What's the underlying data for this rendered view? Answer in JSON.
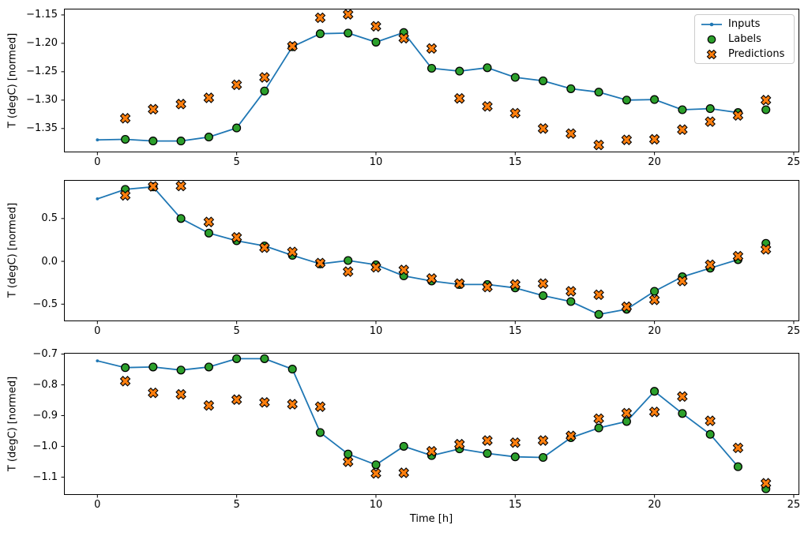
{
  "figure": {
    "background_color": "#ffffff",
    "xlabel": "Time [h]",
    "ylabel": "T (degC) [normed]"
  },
  "legend": {
    "position": "upper-right-first-subplot",
    "items": [
      {
        "label": "Inputs",
        "marker": "line-with-dot",
        "color": "#1f77b4"
      },
      {
        "label": "Labels",
        "marker": "filled-circle",
        "color": "#2ca02c",
        "edge_color": "#000000"
      },
      {
        "label": "Predictions",
        "marker": "thick-x",
        "color": "#ff7f0e",
        "edge_color": "#000000"
      }
    ]
  },
  "chart_data": [
    {
      "type": "line+scatter",
      "ylabel": "T (degC) [normed]",
      "xlabel": "",
      "xlim": [
        -1.2,
        25.2
      ],
      "ylim": [
        -1.392,
        -1.139
      ],
      "xticks": [
        0,
        5,
        10,
        15,
        20,
        25
      ],
      "xtick_labels": [
        "0",
        "5",
        "10",
        "15",
        "20",
        "25"
      ],
      "yticks": [
        -1.15,
        -1.2,
        -1.25,
        -1.3,
        -1.35
      ],
      "ytick_labels": [
        "−1.15",
        "−1.20",
        "−1.25",
        "−1.30",
        "−1.35"
      ],
      "legend": true,
      "series": [
        {
          "name": "Inputs",
          "type": "line",
          "marker": "dot",
          "color": "#1f77b4",
          "x": [
            0,
            1,
            2,
            3,
            4,
            5,
            6,
            7,
            8,
            9,
            10,
            11,
            12,
            13,
            14,
            15,
            16,
            17,
            18,
            19,
            20,
            21,
            22,
            23
          ],
          "y": [
            -1.37,
            -1.369,
            -1.372,
            -1.372,
            -1.365,
            -1.349,
            -1.284,
            -1.206,
            -1.183,
            -1.182,
            -1.198,
            -1.181,
            -1.244,
            -1.249,
            -1.243,
            -1.26,
            -1.266,
            -1.28,
            -1.286,
            -1.3,
            -1.299,
            -1.317,
            -1.315,
            -1.322
          ]
        },
        {
          "name": "Labels",
          "type": "scatter",
          "marker": "circle",
          "color": "#2ca02c",
          "x": [
            1,
            2,
            3,
            4,
            5,
            6,
            7,
            8,
            9,
            10,
            11,
            12,
            13,
            14,
            15,
            16,
            17,
            18,
            19,
            20,
            21,
            22,
            23,
            24
          ],
          "y": [
            -1.369,
            -1.372,
            -1.372,
            -1.365,
            -1.349,
            -1.284,
            -1.206,
            -1.183,
            -1.182,
            -1.198,
            -1.181,
            -1.244,
            -1.249,
            -1.243,
            -1.26,
            -1.266,
            -1.28,
            -1.286,
            -1.3,
            -1.299,
            -1.317,
            -1.315,
            -1.322,
            -1.317
          ]
        },
        {
          "name": "Predictions",
          "type": "scatter",
          "marker": "X",
          "color": "#ff7f0e",
          "x": [
            1,
            2,
            3,
            4,
            5,
            6,
            7,
            8,
            9,
            10,
            11,
            12,
            13,
            14,
            15,
            16,
            17,
            18,
            19,
            20,
            21,
            22,
            23,
            24
          ],
          "y": [
            -1.332,
            -1.316,
            -1.307,
            -1.296,
            -1.273,
            -1.26,
            -1.205,
            -1.155,
            -1.149,
            -1.17,
            -1.191,
            -1.209,
            -1.297,
            -1.311,
            -1.323,
            -1.35,
            -1.359,
            -1.379,
            -1.37,
            -1.369,
            -1.352,
            -1.338,
            -1.327,
            -1.3
          ]
        }
      ]
    },
    {
      "type": "line+scatter",
      "ylabel": "T (degC) [normed]",
      "xlabel": "",
      "xlim": [
        -1.2,
        25.2
      ],
      "ylim": [
        -0.7,
        0.95
      ],
      "xticks": [
        0,
        5,
        10,
        15,
        20,
        25
      ],
      "xtick_labels": [
        "0",
        "5",
        "10",
        "15",
        "20",
        "25"
      ],
      "yticks": [
        0.5,
        0.0,
        -0.5
      ],
      "ytick_labels": [
        "0.5",
        "0.0",
        "−0.5"
      ],
      "legend": false,
      "series": [
        {
          "name": "Inputs",
          "type": "line",
          "marker": "dot",
          "color": "#1f77b4",
          "x": [
            0,
            1,
            2,
            3,
            4,
            5,
            6,
            7,
            8,
            9,
            10,
            11,
            12,
            13,
            14,
            15,
            16,
            17,
            18,
            19,
            20,
            21,
            22,
            23
          ],
          "y": [
            0.73,
            0.84,
            0.87,
            0.5,
            0.33,
            0.24,
            0.18,
            0.07,
            -0.03,
            0.01,
            -0.04,
            -0.17,
            -0.23,
            -0.27,
            -0.27,
            -0.31,
            -0.4,
            -0.47,
            -0.62,
            -0.56,
            -0.35,
            -0.18,
            -0.08,
            0.02
          ]
        },
        {
          "name": "Labels",
          "type": "scatter",
          "marker": "circle",
          "color": "#2ca02c",
          "x": [
            1,
            2,
            3,
            4,
            5,
            6,
            7,
            8,
            9,
            10,
            11,
            12,
            13,
            14,
            15,
            16,
            17,
            18,
            19,
            20,
            21,
            22,
            23,
            24
          ],
          "y": [
            0.84,
            0.87,
            0.5,
            0.33,
            0.24,
            0.18,
            0.07,
            -0.03,
            0.01,
            -0.04,
            -0.17,
            -0.23,
            -0.27,
            -0.27,
            -0.31,
            -0.4,
            -0.47,
            -0.62,
            -0.56,
            -0.35,
            -0.18,
            -0.08,
            0.02,
            0.21
          ]
        },
        {
          "name": "Predictions",
          "type": "scatter",
          "marker": "X",
          "color": "#ff7f0e",
          "x": [
            1,
            2,
            3,
            4,
            5,
            6,
            7,
            8,
            9,
            10,
            11,
            12,
            13,
            14,
            15,
            16,
            17,
            18,
            19,
            20,
            21,
            22,
            23,
            24
          ],
          "y": [
            0.77,
            0.875,
            0.88,
            0.46,
            0.28,
            0.16,
            0.11,
            -0.02,
            -0.12,
            -0.07,
            -0.1,
            -0.2,
            -0.26,
            -0.3,
            -0.27,
            -0.26,
            -0.35,
            -0.39,
            -0.53,
            -0.45,
            -0.23,
            -0.04,
            0.06,
            0.14
          ]
        }
      ]
    },
    {
      "type": "line+scatter",
      "ylabel": "T (degC) [normed]",
      "xlabel": "Time [h]",
      "xlim": [
        -1.2,
        25.2
      ],
      "ylim": [
        -1.158,
        -0.696
      ],
      "xticks": [
        0,
        5,
        10,
        15,
        20,
        25
      ],
      "xtick_labels": [
        "0",
        "5",
        "10",
        "15",
        "20",
        "25"
      ],
      "yticks": [
        -0.7,
        -0.8,
        -0.9,
        -1.0,
        -1.1
      ],
      "ytick_labels": [
        "−0.7",
        "−0.8",
        "−0.9",
        "−1.0",
        "−1.1"
      ],
      "legend": false,
      "series": [
        {
          "name": "Inputs",
          "type": "line",
          "marker": "dot",
          "color": "#1f77b4",
          "x": [
            0,
            1,
            2,
            3,
            4,
            5,
            6,
            7,
            8,
            9,
            10,
            11,
            12,
            13,
            14,
            15,
            16,
            17,
            18,
            19,
            20,
            21,
            22,
            23
          ],
          "y": [
            -0.722,
            -0.744,
            -0.742,
            -0.752,
            -0.742,
            -0.715,
            -0.715,
            -0.749,
            -0.955,
            -1.025,
            -1.06,
            -1.0,
            -1.03,
            -1.008,
            -1.023,
            -1.034,
            -1.036,
            -0.972,
            -0.94,
            -0.919,
            -0.821,
            -0.893,
            -0.961,
            -1.066
          ]
        },
        {
          "name": "Labels",
          "type": "scatter",
          "marker": "circle",
          "color": "#2ca02c",
          "x": [
            1,
            2,
            3,
            4,
            5,
            6,
            7,
            8,
            9,
            10,
            11,
            12,
            13,
            14,
            15,
            16,
            17,
            18,
            19,
            20,
            21,
            22,
            23,
            24
          ],
          "y": [
            -0.744,
            -0.742,
            -0.752,
            -0.742,
            -0.715,
            -0.715,
            -0.749,
            -0.955,
            -1.025,
            -1.06,
            -1.0,
            -1.03,
            -1.008,
            -1.023,
            -1.034,
            -1.036,
            -0.972,
            -0.94,
            -0.919,
            -0.821,
            -0.893,
            -0.961,
            -1.066,
            -1.138
          ]
        },
        {
          "name": "Predictions",
          "type": "scatter",
          "marker": "X",
          "color": "#ff7f0e",
          "x": [
            1,
            2,
            3,
            4,
            5,
            6,
            7,
            8,
            9,
            10,
            11,
            12,
            13,
            14,
            15,
            16,
            17,
            18,
            19,
            20,
            21,
            22,
            23,
            24
          ],
          "y": [
            -0.788,
            -0.826,
            -0.831,
            -0.867,
            -0.848,
            -0.857,
            -0.863,
            -0.871,
            -1.05,
            -1.088,
            -1.086,
            -1.016,
            -0.993,
            -0.981,
            -0.988,
            -0.981,
            -0.966,
            -0.91,
            -0.892,
            -0.888,
            -0.838,
            -0.917,
            -1.005,
            -1.12
          ]
        }
      ]
    }
  ]
}
